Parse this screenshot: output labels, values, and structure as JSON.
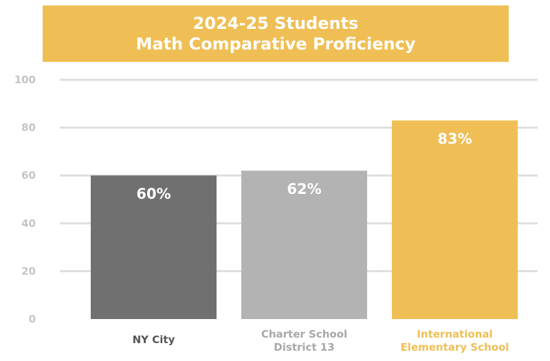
{
  "chart_data": {
    "type": "bar",
    "title_lines": [
      "2024-25 Students",
      "Math Comparative Proficiency"
    ],
    "categories": [
      [
        "NY City"
      ],
      [
        "Charter School",
        "District 13"
      ],
      [
        "International",
        "Elementary School"
      ]
    ],
    "values": [
      60,
      62,
      83
    ],
    "value_labels": [
      "60%",
      "62%",
      "83%"
    ],
    "bar_colors": [
      "#707070",
      "#b3b3b3",
      "#efbf55"
    ],
    "category_label_colors": [
      "#555555",
      "#a8a8a8",
      "#efbf55"
    ],
    "ylim": [
      0,
      100
    ],
    "yticks": [
      0,
      20,
      40,
      60,
      80,
      100
    ],
    "grid": true,
    "title_background": "#efbf55"
  }
}
